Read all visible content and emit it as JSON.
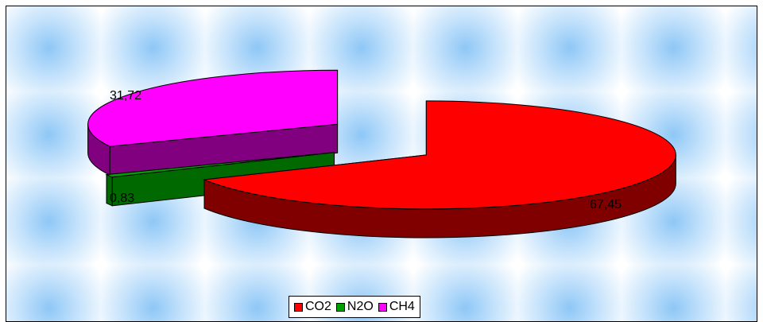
{
  "chart_data": {
    "type": "pie",
    "title": "",
    "three_d": true,
    "exploded": true,
    "legend_position": "bottom",
    "categories": [
      "CO2",
      "N2O",
      "CH4"
    ],
    "values": [
      67.45,
      0.83,
      31.72
    ],
    "data_labels": [
      "67,45",
      "0,83",
      "31,72"
    ],
    "colors": {
      "CO2": {
        "top": "#ff0000",
        "side": "#800000"
      },
      "N2O": {
        "top": "#00a000",
        "side": "#006a00"
      },
      "CH4": {
        "top": "#ff00ff",
        "side": "#800080"
      }
    }
  }
}
